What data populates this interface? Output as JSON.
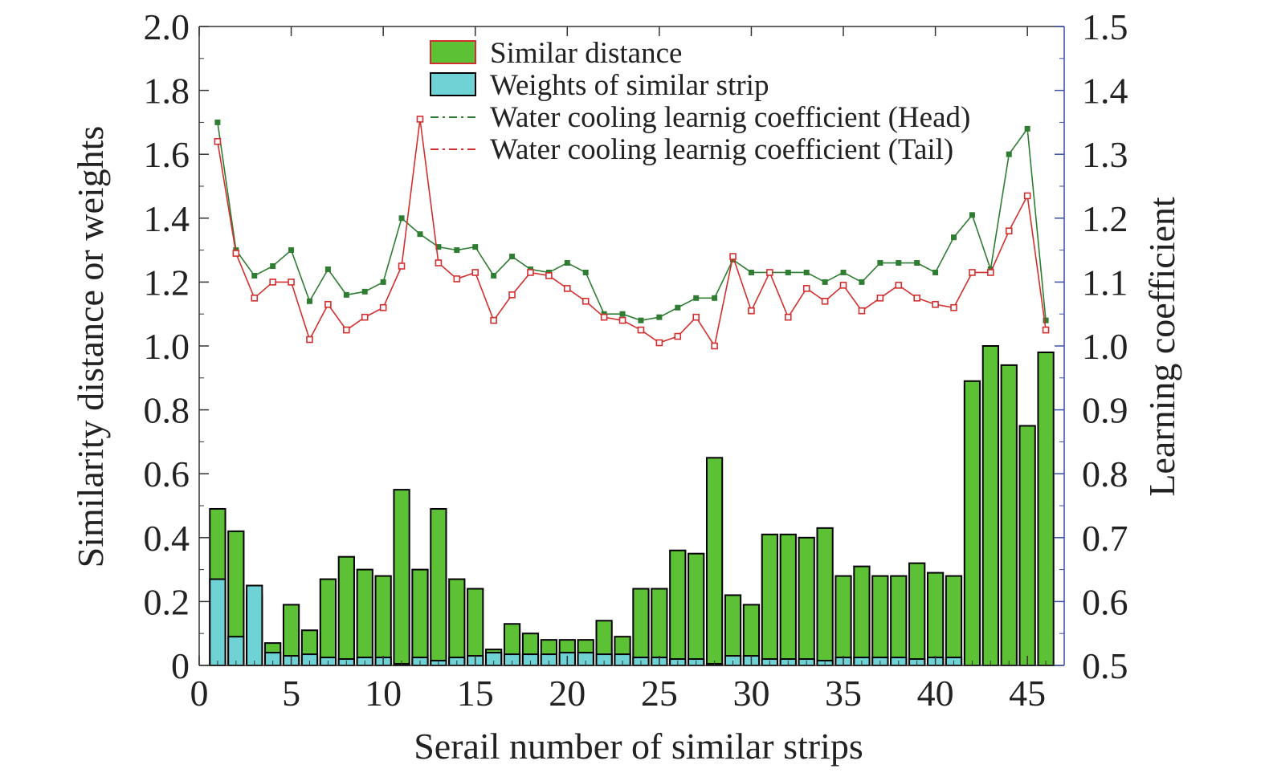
{
  "chart_data": {
    "type": "bar",
    "xlabel": "Serail number of similar strips",
    "ylabel": "Similarity distance or weights",
    "y2label": "Learning coefficient",
    "xlim": [
      0,
      47
    ],
    "ylim": [
      0,
      2.0
    ],
    "y2lim": [
      0.5,
      1.5
    ],
    "x_ticks": [
      0,
      5,
      10,
      15,
      20,
      25,
      30,
      35,
      40,
      45
    ],
    "y_ticks": [
      "0",
      "0.2",
      "0.4",
      "0.6",
      "0.8",
      "1.0",
      "1.2",
      "1.4",
      "1.6",
      "1.8",
      "2.0"
    ],
    "y2_ticks": [
      "0.5",
      "0.6",
      "0.7",
      "0.8",
      "0.9",
      "1.0",
      "1.1",
      "1.2",
      "1.3",
      "1.4",
      "1.5"
    ],
    "legend_position": "top-center",
    "x": [
      1,
      2,
      3,
      4,
      5,
      6,
      7,
      8,
      9,
      10,
      11,
      12,
      13,
      14,
      15,
      16,
      17,
      18,
      19,
      20,
      21,
      22,
      23,
      24,
      25,
      26,
      27,
      28,
      29,
      30,
      31,
      32,
      33,
      34,
      35,
      36,
      37,
      38,
      39,
      40,
      41,
      42,
      43,
      44,
      45,
      46
    ],
    "series": [
      {
        "name": "Similar distance",
        "kind": "bar",
        "axis": "left",
        "color": "#5cc134",
        "edge_color": "#000000",
        "values": [
          0.49,
          0.42,
          0.22,
          0.07,
          0.19,
          0.11,
          0.27,
          0.34,
          0.3,
          0.28,
          0.55,
          0.3,
          0.49,
          0.27,
          0.24,
          0.05,
          0.13,
          0.1,
          0.08,
          0.08,
          0.08,
          0.14,
          0.09,
          0.24,
          0.24,
          0.36,
          0.35,
          0.65,
          0.22,
          0.19,
          0.41,
          0.41,
          0.4,
          0.43,
          0.28,
          0.31,
          0.28,
          0.28,
          0.32,
          0.29,
          0.28,
          0.89,
          1.0,
          0.94,
          0.75,
          0.98
        ]
      },
      {
        "name": "Weights of similar strip",
        "kind": "bar",
        "axis": "left",
        "color": "#6fd2d4",
        "edge_color": "#000000",
        "values": [
          0.27,
          0.09,
          0.25,
          0.04,
          0.03,
          0.035,
          0.025,
          0.02,
          0.025,
          0.025,
          0.005,
          0.025,
          0.015,
          0.025,
          0.03,
          0.04,
          0.035,
          0.035,
          0.035,
          0.04,
          0.04,
          0.035,
          0.035,
          0.025,
          0.025,
          0.02,
          0.02,
          0.005,
          0.03,
          0.03,
          0.02,
          0.02,
          0.02,
          0.015,
          0.025,
          0.025,
          0.025,
          0.025,
          0.02,
          0.025,
          0.025,
          0,
          0,
          0,
          0,
          0
        ]
      },
      {
        "name": "Water cooling learnig coefficient (Head)",
        "kind": "line",
        "axis": "right",
        "color": "#2e7d32",
        "marker": "filled-square",
        "values": [
          1.35,
          1.15,
          1.11,
          1.125,
          1.15,
          1.07,
          1.12,
          1.08,
          1.085,
          1.1,
          1.2,
          1.175,
          1.155,
          1.15,
          1.155,
          1.11,
          1.14,
          1.12,
          1.115,
          1.13,
          1.115,
          1.05,
          1.05,
          1.04,
          1.045,
          1.06,
          1.075,
          1.075,
          1.135,
          1.115,
          1.115,
          1.115,
          1.115,
          1.1,
          1.115,
          1.1,
          1.13,
          1.13,
          1.13,
          1.115,
          1.17,
          1.205,
          1.12,
          1.3,
          1.34,
          1.04
        ]
      },
      {
        "name": "Water cooling learnig coefficient (Tail)",
        "kind": "line",
        "axis": "right",
        "color": "#d32f2f",
        "marker": "open-square",
        "values": [
          1.32,
          1.145,
          1.075,
          1.1,
          1.1,
          1.01,
          1.065,
          1.025,
          1.045,
          1.06,
          1.125,
          1.355,
          1.13,
          1.105,
          1.115,
          1.04,
          1.08,
          1.115,
          1.11,
          1.09,
          1.07,
          1.045,
          1.04,
          1.025,
          1.005,
          1.015,
          1.045,
          1.0,
          1.14,
          1.055,
          1.115,
          1.045,
          1.09,
          1.07,
          1.095,
          1.055,
          1.075,
          1.095,
          1.075,
          1.065,
          1.06,
          1.115,
          1.115,
          1.18,
          1.235,
          1.025
        ]
      }
    ]
  }
}
